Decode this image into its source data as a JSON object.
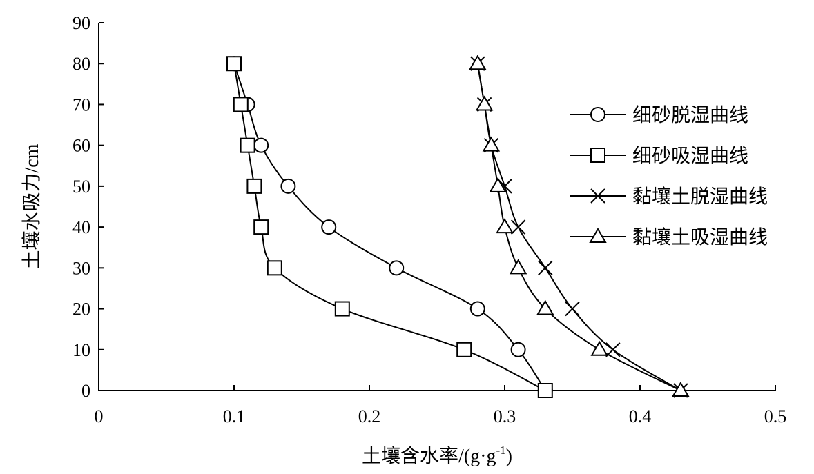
{
  "chart_data": {
    "type": "scatter",
    "xlabel": "土壤含水率/(g·g",
    "xlabel_sup": "-1",
    "xlabel_tail": ")",
    "ylabel": "土壤水吸力/cm",
    "xlim": [
      0,
      0.5
    ],
    "ylim": [
      0,
      90
    ],
    "xticks": [
      0,
      0.1,
      0.2,
      0.3,
      0.4,
      0.5
    ],
    "xtick_labels": [
      "0",
      "0.1",
      "0.2",
      "0.3",
      "0.4",
      "0.5"
    ],
    "yticks": [
      0,
      10,
      20,
      30,
      40,
      50,
      60,
      70,
      80,
      90
    ],
    "ytick_labels": [
      "0",
      "10",
      "20",
      "30",
      "40",
      "50",
      "60",
      "70",
      "80",
      "90"
    ],
    "grid": false,
    "legend_position": "right",
    "series": [
      {
        "name": "细砂脱湿曲线",
        "marker": "circle",
        "points": [
          [
            0.33,
            0
          ],
          [
            0.31,
            10
          ],
          [
            0.28,
            20
          ],
          [
            0.22,
            30
          ],
          [
            0.17,
            40
          ],
          [
            0.14,
            50
          ],
          [
            0.12,
            60
          ],
          [
            0.11,
            70
          ],
          [
            0.1,
            80
          ]
        ]
      },
      {
        "name": "细砂吸湿曲线",
        "marker": "square",
        "points": [
          [
            0.33,
            0
          ],
          [
            0.27,
            10
          ],
          [
            0.18,
            20
          ],
          [
            0.13,
            30
          ],
          [
            0.12,
            40
          ],
          [
            0.115,
            50
          ],
          [
            0.11,
            60
          ],
          [
            0.105,
            70
          ],
          [
            0.1,
            80
          ]
        ]
      },
      {
        "name": "黏壤土脱湿曲线",
        "marker": "x",
        "points": [
          [
            0.43,
            0
          ],
          [
            0.38,
            10
          ],
          [
            0.35,
            20
          ],
          [
            0.33,
            30
          ],
          [
            0.31,
            40
          ],
          [
            0.3,
            50
          ],
          [
            0.29,
            60
          ],
          [
            0.285,
            70
          ],
          [
            0.28,
            80
          ]
        ]
      },
      {
        "name": "黏壤土吸湿曲线",
        "marker": "triangle",
        "points": [
          [
            0.43,
            0
          ],
          [
            0.37,
            10
          ],
          [
            0.33,
            20
          ],
          [
            0.31,
            30
          ],
          [
            0.3,
            40
          ],
          [
            0.295,
            50
          ],
          [
            0.29,
            60
          ],
          [
            0.285,
            70
          ],
          [
            0.28,
            80
          ]
        ]
      }
    ]
  }
}
